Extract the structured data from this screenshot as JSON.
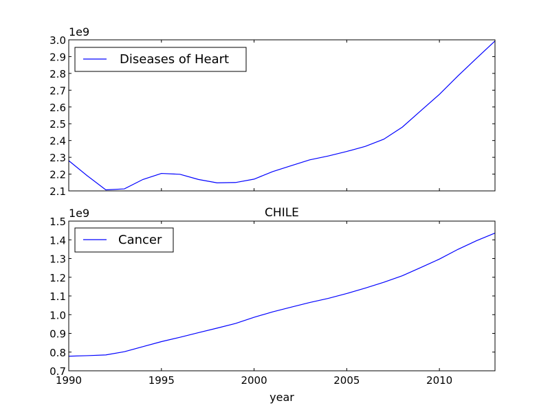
{
  "figure_title": "CHILE",
  "colors": {
    "line": "#0000ff",
    "axes": "#000000",
    "background": "#ffffff"
  },
  "chart_data": [
    {
      "type": "line",
      "title": "",
      "xlabel": "",
      "ylabel": "",
      "offset_text": "1e9",
      "xlim": [
        1990,
        2013
      ],
      "ylim": [
        2.1,
        3.0
      ],
      "xticks": [
        1990,
        1995,
        2000,
        2005,
        2010
      ],
      "yticks": [
        "2.1",
        "2.2",
        "2.3",
        "2.4",
        "2.5",
        "2.6",
        "2.7",
        "2.8",
        "2.9",
        "3.0"
      ],
      "show_xtick_labels": false,
      "grid": false,
      "legend_position": "upper left",
      "x": [
        1990,
        1991,
        1992,
        1993,
        1994,
        1995,
        1996,
        1997,
        1998,
        1999,
        2000,
        2001,
        2002,
        2003,
        2004,
        2005,
        2006,
        2007,
        2008,
        2009,
        2010,
        2011,
        2012,
        2013
      ],
      "series": [
        {
          "name": "Diseases of Heart",
          "color": "#0000ff",
          "values": [
            2.28,
            2.19,
            2.106,
            2.112,
            2.168,
            2.204,
            2.199,
            2.168,
            2.148,
            2.15,
            2.17,
            2.215,
            2.25,
            2.285,
            2.308,
            2.335,
            2.365,
            2.408,
            2.48,
            2.578,
            2.675,
            2.785,
            2.89,
            2.993
          ]
        }
      ]
    },
    {
      "type": "line",
      "title": "CHILE",
      "xlabel": "year",
      "ylabel": "",
      "offset_text": "1e9",
      "xlim": [
        1990,
        2013
      ],
      "ylim": [
        0.7,
        1.5
      ],
      "xticks": [
        1990,
        1995,
        2000,
        2005,
        2010
      ],
      "yticks": [
        "0.7",
        "0.8",
        "0.9",
        "1.0",
        "1.1",
        "1.2",
        "1.3",
        "1.4",
        "1.5"
      ],
      "show_xtick_labels": true,
      "grid": false,
      "legend_position": "upper left",
      "x": [
        1990,
        1991,
        1992,
        1993,
        1994,
        1995,
        1996,
        1997,
        1998,
        1999,
        2000,
        2001,
        2002,
        2003,
        2004,
        2005,
        2006,
        2007,
        2008,
        2009,
        2010,
        2011,
        2012,
        2013
      ],
      "series": [
        {
          "name": "Cancer",
          "color": "#0000ff",
          "values": [
            0.778,
            0.781,
            0.785,
            0.802,
            0.829,
            0.856,
            0.879,
            0.904,
            0.928,
            0.953,
            0.986,
            1.015,
            1.04,
            1.065,
            1.087,
            1.113,
            1.142,
            1.173,
            1.208,
            1.252,
            1.297,
            1.349,
            1.395,
            1.436
          ]
        }
      ]
    }
  ]
}
